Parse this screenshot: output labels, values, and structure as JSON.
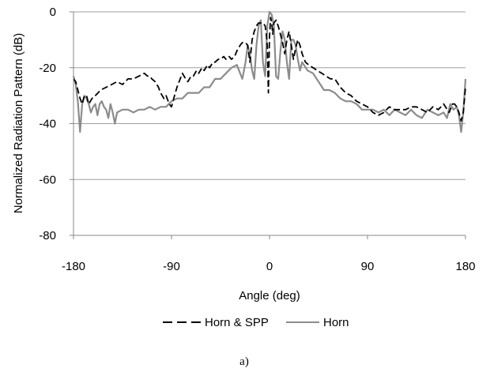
{
  "chart_data": {
    "type": "line",
    "title": "",
    "xlabel": "Angle (deg)",
    "ylabel": "Normalized Radiation Pattern (dB)",
    "xlim": [
      -180,
      180
    ],
    "ylim": [
      -80,
      0
    ],
    "xticks": [
      -180,
      -90,
      0,
      90,
      180
    ],
    "yticks": [
      0,
      -20,
      -40,
      -60,
      -80
    ],
    "xtick_labels": [
      "-180",
      "-90",
      "0",
      "90",
      "180"
    ],
    "ytick_labels": [
      "0",
      "-20",
      "-40",
      "-60",
      "-80"
    ],
    "grid": "horizontal",
    "legend_position": "bottom",
    "caption": "a)",
    "series": [
      {
        "name": "Horn & SPP",
        "style": "dashed",
        "color": "#000000",
        "x": [
          -180,
          -178,
          -176,
          -174,
          -172,
          -170,
          -168,
          -166,
          -163,
          -160,
          -155,
          -150,
          -145,
          -140,
          -135,
          -130,
          -125,
          -120,
          -115,
          -112,
          -110,
          -108,
          -105,
          -102,
          -100,
          -97,
          -95,
          -92,
          -90,
          -88,
          -85,
          -82,
          -80,
          -77,
          -75,
          -72,
          -70,
          -67,
          -65,
          -62,
          -60,
          -57,
          -55,
          -52,
          -50,
          -47,
          -45,
          -42,
          -40,
          -37,
          -35,
          -32,
          -30,
          -27,
          -25,
          -22,
          -20,
          -18,
          -16,
          -14,
          -12,
          -10,
          -8,
          -6,
          -4,
          -3,
          -2,
          -1,
          0,
          1,
          2,
          3,
          4,
          6,
          8,
          10,
          12,
          14,
          16,
          18,
          20,
          22,
          24,
          26,
          28,
          30,
          33,
          36,
          40,
          44,
          48,
          52,
          56,
          60,
          65,
          70,
          75,
          80,
          85,
          90,
          95,
          100,
          105,
          110,
          115,
          120,
          125,
          130,
          135,
          140,
          145,
          150,
          155,
          160,
          165,
          168,
          170,
          172,
          174,
          176,
          178,
          180
        ],
        "y": [
          -24,
          -25,
          -28,
          -31,
          -33,
          -30,
          -30,
          -33,
          -31,
          -30,
          -28,
          -27,
          -26,
          -25,
          -26,
          -24,
          -24,
          -23,
          -22,
          -23,
          -23,
          -24,
          -25,
          -27,
          -29,
          -31,
          -30,
          -33,
          -34,
          -31,
          -27,
          -24,
          -22,
          -24,
          -25,
          -23,
          -23,
          -21,
          -22,
          -20,
          -21,
          -19,
          -20,
          -18,
          -18,
          -17,
          -17,
          -16,
          -17,
          -16,
          -17,
          -16,
          -14,
          -12,
          -11,
          -11,
          -12,
          -18,
          -10,
          -7,
          -5,
          -4,
          -4,
          -4,
          -5,
          -8,
          -12,
          -29,
          -9,
          -2,
          -4,
          -8,
          -4,
          -3,
          -5,
          -8,
          -11,
          -15,
          -10,
          -7,
          -12,
          -17,
          -13,
          -10,
          -12,
          -15,
          -18,
          -19,
          -20,
          -21,
          -22,
          -23,
          -24,
          -24,
          -27,
          -29,
          -30,
          -32,
          -33,
          -34,
          -36,
          -37,
          -36,
          -34,
          -35,
          -35,
          -35,
          -34,
          -34,
          -35,
          -36,
          -34,
          -35,
          -33,
          -36,
          -33,
          -33,
          -34,
          -36,
          -39,
          -36,
          -27
        ]
      },
      {
        "name": "Horn",
        "style": "solid",
        "color": "#8c8c8c",
        "x": [
          -180,
          -178,
          -176,
          -174,
          -172,
          -170,
          -168,
          -166,
          -164,
          -162,
          -160,
          -158,
          -156,
          -154,
          -152,
          -150,
          -148,
          -146,
          -144,
          -142,
          -140,
          -135,
          -130,
          -125,
          -120,
          -115,
          -110,
          -105,
          -100,
          -95,
          -90,
          -85,
          -80,
          -75,
          -70,
          -65,
          -60,
          -55,
          -50,
          -45,
          -40,
          -35,
          -30,
          -25,
          -22,
          -20,
          -18,
          -16,
          -14,
          -12,
          -10,
          -8,
          -6,
          -4,
          -2,
          0,
          2,
          4,
          6,
          8,
          10,
          12,
          14,
          16,
          18,
          20,
          22,
          24,
          26,
          28,
          30,
          35,
          40,
          45,
          50,
          55,
          60,
          65,
          70,
          75,
          80,
          85,
          90,
          95,
          100,
          105,
          110,
          115,
          120,
          125,
          130,
          135,
          140,
          145,
          150,
          155,
          160,
          163,
          166,
          169,
          172,
          174,
          176,
          178,
          180
        ],
        "y": [
          -23,
          -26,
          -32,
          -43,
          -33,
          -30,
          -31,
          -33,
          -36,
          -34,
          -33,
          -37,
          -33,
          -32,
          -34,
          -35,
          -38,
          -33,
          -36,
          -40,
          -36,
          -35,
          -35,
          -36,
          -35,
          -35,
          -34,
          -35,
          -34,
          -34,
          -32,
          -31,
          -31,
          -29,
          -29,
          -29,
          -27,
          -27,
          -24,
          -24,
          -22,
          -20,
          -19,
          -24,
          -18,
          -12,
          -15,
          -21,
          -24,
          -12,
          -5,
          -3,
          -18,
          -23,
          -5,
          0,
          -1,
          -5,
          -23,
          -24,
          -14,
          -7,
          -10,
          -18,
          -24,
          -10,
          -10,
          -12,
          -17,
          -21,
          -18,
          -21,
          -22,
          -25,
          -28,
          -28,
          -29,
          -31,
          -32,
          -32,
          -33,
          -35,
          -35,
          -35,
          -36,
          -35,
          -37,
          -35,
          -36,
          -37,
          -35,
          -37,
          -38,
          -35,
          -36,
          -37,
          -36,
          -38,
          -33,
          -35,
          -34,
          -37,
          -43,
          -36,
          -24
        ]
      }
    ]
  }
}
